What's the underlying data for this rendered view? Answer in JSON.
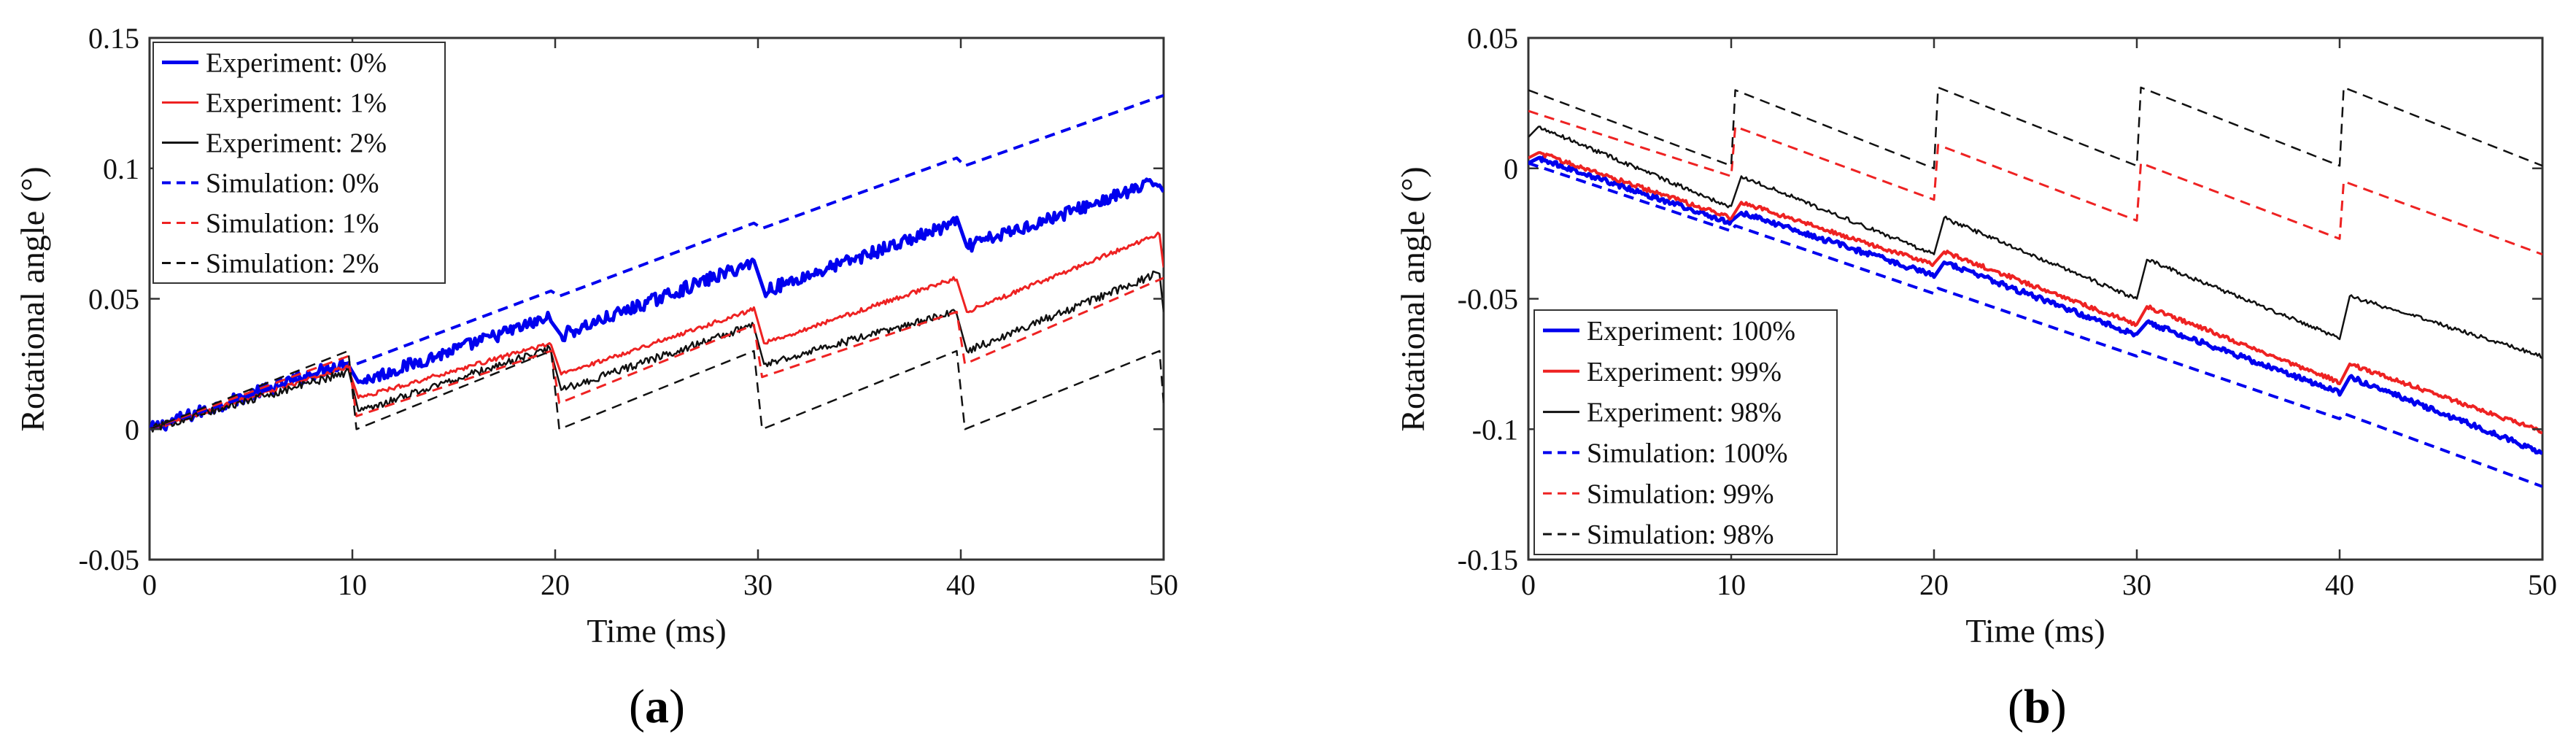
{
  "chart_data": [
    {
      "type": "line",
      "panel_label": "(a)",
      "panel_bold": "a",
      "xlabel": "Time (ms)",
      "ylabel": "Rotational angle (°)",
      "xlim": [
        0,
        50
      ],
      "ylim": [
        -0.05,
        0.15
      ],
      "xticks": [
        0,
        10,
        20,
        30,
        40,
        50
      ],
      "yticks": [
        -0.05,
        0,
        0.05,
        0.1,
        0.15
      ],
      "ytick_labels": [
        "-0.05",
        "0",
        "0.05",
        "0.1",
        "0.15"
      ],
      "legend_position": "top-left",
      "series": [
        {
          "name": "Experiment: 0%",
          "color": "#0000ee",
          "style": "solid",
          "width": 5,
          "noise": 0.0025,
          "points": [
            [
              0,
              0
            ],
            [
              9.8,
              0.026
            ],
            [
              10.3,
              0.018
            ],
            [
              19.8,
              0.043
            ],
            [
              20.3,
              0.036
            ],
            [
              29.8,
              0.064
            ],
            [
              30.3,
              0.053
            ],
            [
              39.8,
              0.079
            ],
            [
              40.3,
              0.07
            ],
            [
              49.8,
              0.095
            ],
            [
              50,
              0.091
            ]
          ]
        },
        {
          "name": "Experiment: 1%",
          "color": "#ee2222",
          "style": "solid",
          "width": 3,
          "noise": 0.0008,
          "points": [
            [
              0,
              0
            ],
            [
              9.8,
              0.024
            ],
            [
              10.3,
              0.012
            ],
            [
              19.8,
              0.033
            ],
            [
              20.3,
              0.021
            ],
            [
              29.8,
              0.046
            ],
            [
              30.3,
              0.033
            ],
            [
              39.8,
              0.058
            ],
            [
              40.3,
              0.045
            ],
            [
              49.8,
              0.075
            ],
            [
              50,
              0.062
            ]
          ]
        },
        {
          "name": "Experiment: 2%",
          "color": "#111111",
          "style": "solid",
          "width": 2.5,
          "noise": 0.0015,
          "points": [
            [
              0,
              0
            ],
            [
              9.8,
              0.022
            ],
            [
              10.3,
              0.007
            ],
            [
              19.8,
              0.031
            ],
            [
              20.3,
              0.015
            ],
            [
              29.8,
              0.04
            ],
            [
              30.3,
              0.025
            ],
            [
              39.8,
              0.045
            ],
            [
              40.3,
              0.03
            ],
            [
              49.8,
              0.06
            ],
            [
              50,
              0.045
            ]
          ]
        },
        {
          "name": "Simulation: 0%",
          "color": "#0000ee",
          "style": "dashed",
          "width": 4,
          "noise": 0,
          "points": [
            [
              0,
              0
            ],
            [
              9.8,
              0.0255
            ],
            [
              10.2,
              0.025
            ],
            [
              19.8,
              0.053
            ],
            [
              20.2,
              0.051
            ],
            [
              29.8,
              0.079
            ],
            [
              30.2,
              0.077
            ],
            [
              39.8,
              0.104
            ],
            [
              40.2,
              0.101
            ],
            [
              50,
              0.128
            ]
          ]
        },
        {
          "name": "Simulation: 1%",
          "color": "#ee2222",
          "style": "dashed",
          "width": 3,
          "noise": 0,
          "points": [
            [
              0,
              0
            ],
            [
              9.8,
              0.028
            ],
            [
              10.2,
              0.005
            ],
            [
              19.8,
              0.03
            ],
            [
              20.2,
              0.01
            ],
            [
              29.8,
              0.04
            ],
            [
              30.2,
              0.02
            ],
            [
              39.8,
              0.045
            ],
            [
              40.2,
              0.025
            ],
            [
              50,
              0.058
            ]
          ]
        },
        {
          "name": "Simulation: 2%",
          "color": "#111111",
          "style": "dashed",
          "width": 2.5,
          "noise": 0,
          "points": [
            [
              0,
              0
            ],
            [
              9.8,
              0.03
            ],
            [
              10.2,
              0.0
            ],
            [
              19.8,
              0.03
            ],
            [
              20.2,
              0.0
            ],
            [
              29.8,
              0.03
            ],
            [
              30.2,
              0.0
            ],
            [
              39.8,
              0.03
            ],
            [
              40.2,
              0.0
            ],
            [
              49.8,
              0.03
            ],
            [
              50,
              0.01
            ]
          ]
        }
      ]
    },
    {
      "type": "line",
      "panel_label": "(b)",
      "panel_bold": "b",
      "xlabel": "Time (ms)",
      "ylabel": "Rotational angle (°)",
      "xlim": [
        0,
        50
      ],
      "ylim": [
        -0.15,
        0.05
      ],
      "xticks": [
        0,
        10,
        20,
        30,
        40,
        50
      ],
      "yticks": [
        -0.15,
        -0.1,
        -0.05,
        0,
        0.05
      ],
      "ytick_labels": [
        "-0.15",
        "-0.1",
        "-0.05",
        "0",
        "0.05"
      ],
      "legend_position": "bottom-left",
      "series": [
        {
          "name": "Experiment: 100%",
          "color": "#0000ee",
          "style": "solid",
          "width": 5,
          "noise": 0.001,
          "points": [
            [
              0,
              0.002
            ],
            [
              0.5,
              0.004
            ],
            [
              10,
              -0.021
            ],
            [
              10.5,
              -0.017
            ],
            [
              20,
              -0.041
            ],
            [
              20.5,
              -0.036
            ],
            [
              30,
              -0.064
            ],
            [
              30.5,
              -0.059
            ],
            [
              40,
              -0.086
            ],
            [
              40.5,
              -0.08
            ],
            [
              50,
              -0.109
            ]
          ]
        },
        {
          "name": "Experiment: 99%",
          "color": "#ee2222",
          "style": "solid",
          "width": 4,
          "noise": 0.0008,
          "points": [
            [
              0,
              0.004
            ],
            [
              0.5,
              0.006
            ],
            [
              10,
              -0.019
            ],
            [
              10.5,
              -0.013
            ],
            [
              20,
              -0.037
            ],
            [
              20.5,
              -0.032
            ],
            [
              30,
              -0.06
            ],
            [
              30.5,
              -0.053
            ],
            [
              40,
              -0.082
            ],
            [
              40.5,
              -0.075
            ],
            [
              50,
              -0.101
            ]
          ]
        },
        {
          "name": "Experiment: 98%",
          "color": "#111111",
          "style": "solid",
          "width": 2.5,
          "noise": 0.0008,
          "points": [
            [
              0,
              0.012
            ],
            [
              0.5,
              0.016
            ],
            [
              10,
              -0.015
            ],
            [
              10.5,
              -0.003
            ],
            [
              20,
              -0.033
            ],
            [
              20.5,
              -0.019
            ],
            [
              30,
              -0.05
            ],
            [
              30.5,
              -0.035
            ],
            [
              40,
              -0.065
            ],
            [
              40.5,
              -0.049
            ],
            [
              50,
              -0.072
            ]
          ]
        },
        {
          "name": "Simulation: 100%",
          "color": "#0000ee",
          "style": "dashed",
          "width": 4,
          "noise": 0,
          "points": [
            [
              0,
              0.002
            ],
            [
              10,
              -0.024
            ],
            [
              10.2,
              -0.022
            ],
            [
              20,
              -0.048
            ],
            [
              20.2,
              -0.046
            ],
            [
              30,
              -0.072
            ],
            [
              30.2,
              -0.07
            ],
            [
              40,
              -0.096
            ],
            [
              40.2,
              -0.094
            ],
            [
              50,
              -0.122
            ]
          ]
        },
        {
          "name": "Simulation: 99%",
          "color": "#ee2222",
          "style": "dashed",
          "width": 3,
          "noise": 0,
          "points": [
            [
              0,
              0.022
            ],
            [
              10,
              -0.003
            ],
            [
              10.2,
              0.016
            ],
            [
              20,
              -0.012
            ],
            [
              20.2,
              0.009
            ],
            [
              30,
              -0.02
            ],
            [
              30.2,
              0.002
            ],
            [
              40,
              -0.027
            ],
            [
              40.2,
              -0.005
            ],
            [
              50,
              -0.033
            ]
          ]
        },
        {
          "name": "Simulation: 98%",
          "color": "#111111",
          "style": "dashed",
          "width": 2.5,
          "noise": 0,
          "points": [
            [
              0,
              0.03
            ],
            [
              10,
              0.001
            ],
            [
              10.2,
              0.03
            ],
            [
              20,
              0.0
            ],
            [
              20.2,
              0.031
            ],
            [
              30,
              0.001
            ],
            [
              30.2,
              0.031
            ],
            [
              40,
              0.001
            ],
            [
              40.2,
              0.031
            ],
            [
              50,
              0.001
            ]
          ]
        }
      ]
    }
  ]
}
